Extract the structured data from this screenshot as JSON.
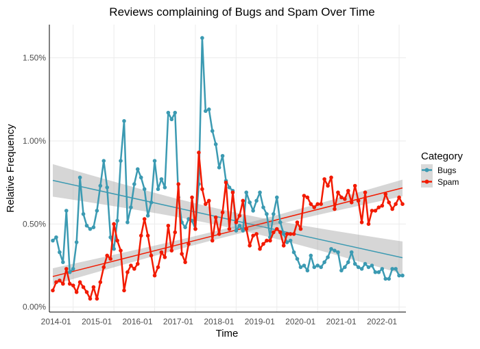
{
  "chart_data": {
    "type": "line",
    "title": "Reviews complaining of Bugs and Spam Over Time",
    "xlabel": "Time",
    "ylabel": "Relative Frequency",
    "x_tick_labels": [
      "2014-01",
      "2015-01",
      "2016-01",
      "2017-01",
      "2018-01",
      "2019-01",
      "2020-01",
      "2021-01",
      "2022-01"
    ],
    "y_tick_labels": [
      "0.00%",
      "0.50%",
      "1.00%",
      "1.50%"
    ],
    "y_ticks": [
      0,
      0.5,
      1.0,
      1.5
    ],
    "ylim": [
      -0.03,
      1.7
    ],
    "y_unit": "%",
    "grid": true,
    "trend_lines": "linear fit with confidence band per series",
    "legend": {
      "title": "Category",
      "placement": "right"
    },
    "x": [
      "2013-07",
      "2013-08",
      "2013-09",
      "2013-10",
      "2013-11",
      "2013-12",
      "2014-01",
      "2014-02",
      "2014-03",
      "2014-04",
      "2014-05",
      "2014-06",
      "2014-07",
      "2014-08",
      "2014-09",
      "2014-10",
      "2014-11",
      "2014-12",
      "2015-01",
      "2015-02",
      "2015-03",
      "2015-04",
      "2015-05",
      "2015-06",
      "2015-07",
      "2015-08",
      "2015-09",
      "2015-10",
      "2015-11",
      "2015-12",
      "2016-01",
      "2016-02",
      "2016-03",
      "2016-04",
      "2016-05",
      "2016-06",
      "2016-07",
      "2016-08",
      "2016-09",
      "2016-10",
      "2016-11",
      "2016-12",
      "2017-01",
      "2017-02",
      "2017-03",
      "2017-04",
      "2017-05",
      "2017-06",
      "2017-07",
      "2017-08",
      "2017-09",
      "2017-10",
      "2017-11",
      "2017-12",
      "2018-01",
      "2018-02",
      "2018-03",
      "2018-04",
      "2018-05",
      "2018-06",
      "2018-07",
      "2018-08",
      "2018-09",
      "2018-10",
      "2018-11",
      "2018-12",
      "2019-01",
      "2019-02",
      "2019-03",
      "2019-04",
      "2019-05",
      "2019-06",
      "2019-07",
      "2019-08",
      "2019-09",
      "2019-10",
      "2019-11",
      "2019-12",
      "2020-01",
      "2020-02",
      "2020-03",
      "2020-04",
      "2020-05",
      "2020-06",
      "2020-07",
      "2020-08",
      "2020-09",
      "2020-10",
      "2020-11",
      "2020-12",
      "2021-01",
      "2021-02",
      "2021-03",
      "2021-04",
      "2021-05",
      "2021-06",
      "2021-07",
      "2021-08",
      "2021-09",
      "2021-10",
      "2021-11",
      "2021-12",
      "2022-01",
      "2022-02"
    ],
    "series": [
      {
        "name": "Bugs",
        "color": "#3B9AB2",
        "values": [
          0.4,
          0.42,
          0.33,
          0.27,
          0.58,
          0.21,
          0.23,
          0.39,
          0.78,
          0.56,
          0.49,
          0.47,
          0.48,
          0.58,
          0.73,
          0.88,
          0.72,
          0.42,
          0.35,
          0.52,
          0.88,
          1.12,
          0.51,
          0.6,
          0.74,
          0.83,
          0.78,
          0.71,
          0.55,
          0.63,
          0.88,
          0.71,
          0.77,
          0.72,
          1.17,
          1.13,
          1.17,
          0.66,
          0.51,
          0.48,
          0.53,
          0.52,
          0.47,
          0.74,
          1.62,
          1.18,
          1.19,
          1.06,
          0.98,
          0.84,
          0.91,
          0.76,
          0.72,
          0.7,
          0.46,
          0.49,
          0.46,
          0.69,
          0.63,
          0.58,
          0.64,
          0.69,
          0.6,
          0.56,
          0.42,
          0.56,
          0.66,
          0.51,
          0.44,
          0.39,
          0.4,
          0.33,
          0.29,
          0.24,
          0.25,
          0.22,
          0.31,
          0.24,
          0.25,
          0.24,
          0.27,
          0.3,
          0.35,
          0.34,
          0.33,
          0.22,
          0.24,
          0.27,
          0.33,
          0.26,
          0.24,
          0.23,
          0.26,
          0.24,
          0.25,
          0.21,
          0.21,
          0.23,
          0.17,
          0.17,
          0.23,
          0.23,
          0.19,
          0.19
        ]
      },
      {
        "name": "Spam",
        "color": "#F21A00",
        "values": [
          0.1,
          0.15,
          0.16,
          0.14,
          0.23,
          0.14,
          0.13,
          0.09,
          0.15,
          0.12,
          0.09,
          0.05,
          0.12,
          0.05,
          0.15,
          0.24,
          0.31,
          0.29,
          0.5,
          0.4,
          0.34,
          0.1,
          0.21,
          0.25,
          0.23,
          0.26,
          0.43,
          0.53,
          0.43,
          0.31,
          0.19,
          0.24,
          0.33,
          0.3,
          0.49,
          0.34,
          0.45,
          0.74,
          0.32,
          0.27,
          0.38,
          0.66,
          0.47,
          0.93,
          0.71,
          0.62,
          0.64,
          0.4,
          0.54,
          0.44,
          0.57,
          0.75,
          0.47,
          0.69,
          0.51,
          0.55,
          0.64,
          0.47,
          0.37,
          0.43,
          0.44,
          0.35,
          0.38,
          0.4,
          0.4,
          0.45,
          0.47,
          0.45,
          0.37,
          0.44,
          0.44,
          0.44,
          0.51,
          0.47,
          0.67,
          0.66,
          0.62,
          0.6,
          0.62,
          0.62,
          0.77,
          0.73,
          0.78,
          0.59,
          0.69,
          0.66,
          0.65,
          0.7,
          0.63,
          0.73,
          0.64,
          0.51,
          0.69,
          0.5,
          0.58,
          0.58,
          0.6,
          0.61,
          0.68,
          0.63,
          0.59,
          0.62,
          0.66,
          0.62
        ]
      }
    ]
  }
}
